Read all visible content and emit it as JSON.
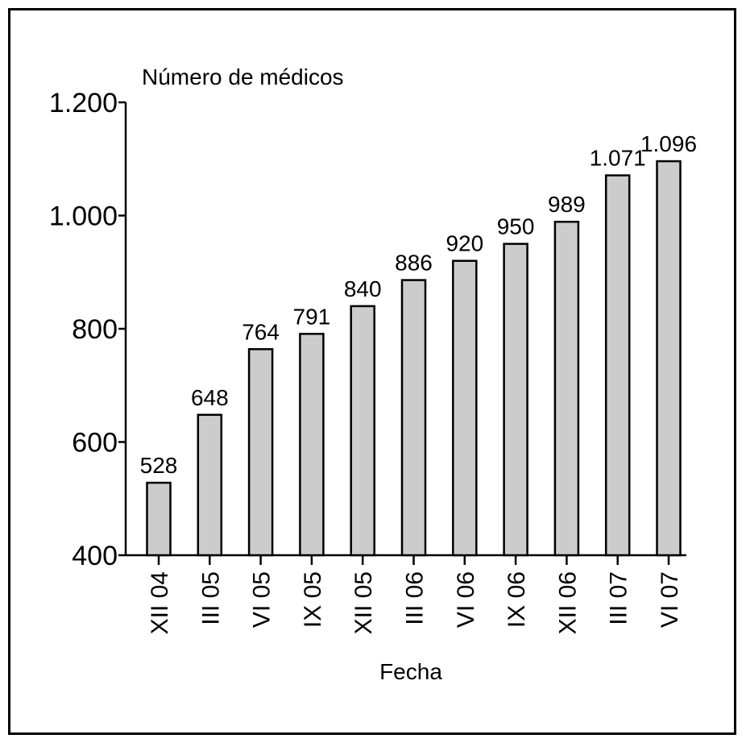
{
  "chart_data": {
    "type": "bar",
    "title": "",
    "ylabel": "Número de médicos",
    "xlabel": "Fecha",
    "categories": [
      "XII 04",
      "III 05",
      "VI 05",
      "IX 05",
      "XII 05",
      "III 06",
      "VI 06",
      "IX 06",
      "XII 06",
      "III 07",
      "VI 07"
    ],
    "values": [
      528,
      648,
      764,
      791,
      840,
      886,
      920,
      950,
      989,
      1071,
      1096
    ],
    "value_labels": [
      "528",
      "648",
      "764",
      "791",
      "840",
      "886",
      "920",
      "950",
      "989",
      "1.071",
      "1.096"
    ],
    "ylim": [
      400,
      1200
    ],
    "yticks": [
      400,
      600,
      800,
      1000,
      1200
    ],
    "ytick_labels": [
      "400",
      "600",
      "800",
      "1.000",
      "1.200"
    ],
    "grid": false,
    "bar_color": "#cccccc",
    "bar_edge_color": "#000000"
  }
}
